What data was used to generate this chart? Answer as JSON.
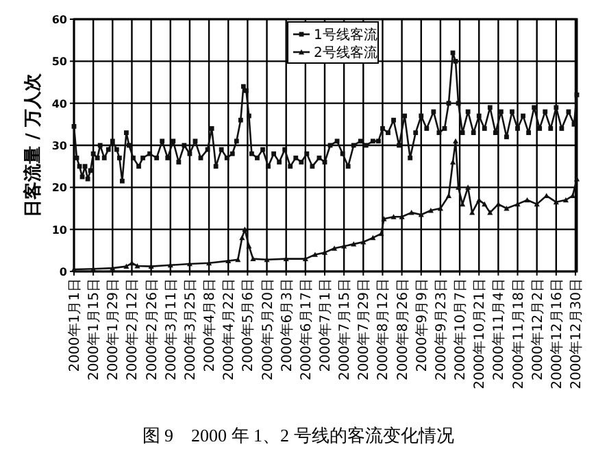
{
  "chart_data": {
    "type": "line",
    "title": "图 9　2000 年 1、2 号线的客流变化情况",
    "ylabel": "日客流量 / 万人次",
    "xlim": [
      "2000-01-01",
      "2000-12-31"
    ],
    "ylim": [
      0,
      60
    ],
    "yticks": [
      0,
      10,
      20,
      30,
      40,
      50,
      60
    ],
    "xticks": [
      {
        "value": "2000-01-01",
        "label": "2000年1月1日"
      },
      {
        "value": "2000-01-15",
        "label": "2000年1月15日"
      },
      {
        "value": "2000-01-29",
        "label": "2000年1月29日"
      },
      {
        "value": "2000-02-12",
        "label": "2000年2月12日"
      },
      {
        "value": "2000-02-26",
        "label": "2000年2月26日"
      },
      {
        "value": "2000-03-11",
        "label": "2000年3月11日"
      },
      {
        "value": "2000-03-25",
        "label": "2000年3月25日"
      },
      {
        "value": "2000-04-08",
        "label": "2000年4月8日"
      },
      {
        "value": "2000-04-22",
        "label": "2000年4月22日"
      },
      {
        "value": "2000-05-06",
        "label": "2000年5月6日"
      },
      {
        "value": "2000-05-20",
        "label": "2000年5月20日"
      },
      {
        "value": "2000-06-03",
        "label": "2000年6月3日"
      },
      {
        "value": "2000-06-17",
        "label": "2000年6月17日"
      },
      {
        "value": "2000-07-01",
        "label": "2000年7月1日"
      },
      {
        "value": "2000-07-15",
        "label": "2000年7月15日"
      },
      {
        "value": "2000-07-29",
        "label": "2000年7月29日"
      },
      {
        "value": "2000-08-12",
        "label": "2000年8月12日"
      },
      {
        "value": "2000-08-26",
        "label": "2000年8月26日"
      },
      {
        "value": "2000-09-09",
        "label": "2000年9月9日"
      },
      {
        "value": "2000-09-23",
        "label": "2000年9月23日"
      },
      {
        "value": "2000-10-07",
        "label": "2000年10月7日"
      },
      {
        "value": "2000-10-21",
        "label": "2000年10月21日"
      },
      {
        "value": "2000-11-04",
        "label": "2000年11月4日"
      },
      {
        "value": "2000-11-18",
        "label": "2000年11月18日"
      },
      {
        "value": "2000-12-02",
        "label": "2000年12月2日"
      },
      {
        "value": "2000-12-16",
        "label": "2000年12月16日"
      },
      {
        "value": "2000-12-30",
        "label": "2000年12月30日"
      }
    ],
    "grid": true,
    "legend": "top",
    "line_style": "solid",
    "series": [
      {
        "name": "1号线客流",
        "color": "#111111",
        "marker": "square",
        "x": [
          "2000-01-01",
          "2000-01-03",
          "2000-01-05",
          "2000-01-07",
          "2000-01-09",
          "2000-01-11",
          "2000-01-13",
          "2000-01-15",
          "2000-01-18",
          "2000-01-20",
          "2000-01-23",
          "2000-01-26",
          "2000-01-29",
          "2000-02-01",
          "2000-02-03",
          "2000-02-05",
          "2000-02-08",
          "2000-02-10",
          "2000-02-13",
          "2000-02-17",
          "2000-02-20",
          "2000-02-25",
          "2000-03-01",
          "2000-03-05",
          "2000-03-09",
          "2000-03-13",
          "2000-03-17",
          "2000-03-21",
          "2000-03-25",
          "2000-03-29",
          "2000-04-02",
          "2000-04-07",
          "2000-04-10",
          "2000-04-13",
          "2000-04-17",
          "2000-04-21",
          "2000-04-25",
          "2000-04-28",
          "2000-05-01",
          "2000-05-03",
          "2000-05-05",
          "2000-05-07",
          "2000-05-09",
          "2000-05-13",
          "2000-05-17",
          "2000-05-21",
          "2000-05-25",
          "2000-05-29",
          "2000-06-02",
          "2000-06-06",
          "2000-06-10",
          "2000-06-14",
          "2000-06-18",
          "2000-06-22",
          "2000-06-27",
          "2000-07-01",
          "2000-07-05",
          "2000-07-10",
          "2000-07-14",
          "2000-07-18",
          "2000-07-22",
          "2000-07-27",
          "2000-07-31",
          "2000-08-05",
          "2000-08-09",
          "2000-08-12",
          "2000-08-16",
          "2000-08-20",
          "2000-08-24",
          "2000-08-28",
          "2000-09-01",
          "2000-09-05",
          "2000-09-09",
          "2000-09-13",
          "2000-09-18",
          "2000-09-22",
          "2000-09-26",
          "2000-09-29",
          "2000-10-02",
          "2000-10-04",
          "2000-10-06",
          "2000-10-09",
          "2000-10-13",
          "2000-10-17",
          "2000-10-21",
          "2000-10-25",
          "2000-10-29",
          "2000-11-02",
          "2000-11-06",
          "2000-11-10",
          "2000-11-14",
          "2000-11-18",
          "2000-11-22",
          "2000-11-26",
          "2000-11-30",
          "2000-12-04",
          "2000-12-08",
          "2000-12-12",
          "2000-12-16",
          "2000-12-20",
          "2000-12-25",
          "2000-12-29",
          "2000-12-31"
        ],
        "values": [
          34.5,
          27,
          25,
          22.5,
          25,
          22,
          24,
          28,
          27,
          30,
          27,
          29,
          31,
          29,
          27,
          21.5,
          33,
          30,
          27,
          25,
          27,
          28,
          27,
          31,
          27,
          31,
          26,
          30,
          28,
          31,
          27,
          29,
          34,
          25,
          29,
          27,
          28,
          31,
          36,
          44,
          43,
          37,
          28,
          27,
          29,
          25,
          28,
          26,
          29,
          25,
          27,
          26,
          28,
          25,
          27,
          26,
          30,
          31,
          28,
          25,
          30,
          31,
          30,
          31,
          31,
          34,
          33,
          36,
          30,
          37,
          27,
          33,
          37,
          34,
          38,
          33,
          34,
          40,
          52,
          50,
          40,
          33,
          38,
          33,
          37,
          34,
          39,
          33,
          38,
          32,
          38,
          34,
          37,
          33,
          39,
          34,
          38,
          34,
          39,
          34,
          38,
          35,
          42
        ]
      },
      {
        "name": "2号线客流",
        "color": "#111111",
        "marker": "triangle",
        "x": [
          "2000-01-01",
          "2000-01-15",
          "2000-01-29",
          "2000-02-08",
          "2000-02-12",
          "2000-02-16",
          "2000-02-26",
          "2000-03-11",
          "2000-03-25",
          "2000-04-08",
          "2000-04-22",
          "2000-04-29",
          "2000-05-02",
          "2000-05-04",
          "2000-05-07",
          "2000-05-10",
          "2000-05-20",
          "2000-06-03",
          "2000-06-17",
          "2000-06-24",
          "2000-07-01",
          "2000-07-08",
          "2000-07-15",
          "2000-07-22",
          "2000-07-29",
          "2000-08-05",
          "2000-08-11",
          "2000-08-13",
          "2000-08-20",
          "2000-08-26",
          "2000-09-02",
          "2000-09-09",
          "2000-09-16",
          "2000-09-23",
          "2000-09-29",
          "2000-10-02",
          "2000-10-04",
          "2000-10-06",
          "2000-10-09",
          "2000-10-13",
          "2000-10-16",
          "2000-10-21",
          "2000-10-25",
          "2000-10-29",
          "2000-11-04",
          "2000-11-10",
          "2000-11-18",
          "2000-11-25",
          "2000-12-02",
          "2000-12-09",
          "2000-12-16",
          "2000-12-23",
          "2000-12-28",
          "2000-12-31"
        ],
        "values": [
          0.5,
          0.6,
          0.8,
          1.2,
          2,
          1.3,
          1.2,
          1.5,
          1.8,
          2,
          2.5,
          2.8,
          8,
          10,
          6,
          3,
          2.8,
          3,
          3,
          4,
          4.5,
          5.5,
          6,
          6.5,
          7,
          8,
          9,
          12.5,
          13,
          13,
          14,
          13.5,
          14.5,
          15,
          18,
          26,
          31,
          20,
          16,
          20,
          14,
          17,
          16,
          14,
          16,
          15,
          16,
          17,
          16,
          18,
          16.5,
          17,
          18,
          22
        ]
      }
    ]
  }
}
